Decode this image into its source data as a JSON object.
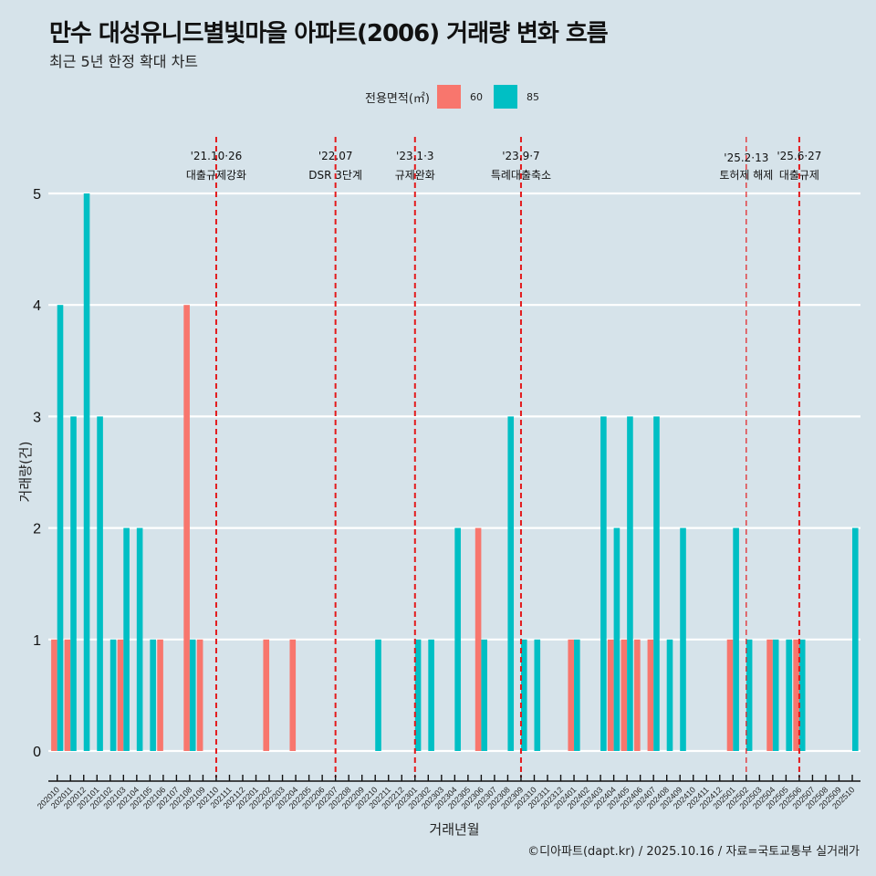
{
  "header": {
    "title": "만수 대성유니드별빛마을 아파트(2006) 거래량 변화 흐름",
    "subtitle": "최근 5년 한정 확대 차트"
  },
  "legend": {
    "title": "전용면적(㎡)",
    "items": [
      {
        "label": "60",
        "color": "#F8766D"
      },
      {
        "label": "85",
        "color": "#00BFC4"
      }
    ]
  },
  "footer": "©디아파트(dapt.kr) / 2025.10.16 / 자료=국토교통부 실거래가",
  "chart_data": {
    "type": "bar",
    "title": "만수 대성유니드별빛마을 아파트(2006) 거래량 변화 흐름",
    "subtitle": "최근 5년 한정 확대 차트",
    "xlabel": "거래년월",
    "ylabel": "거래량(건)",
    "ylim": [
      0,
      5
    ],
    "yticks": [
      0,
      1,
      2,
      3,
      4,
      5
    ],
    "grid": true,
    "legend_position": "top",
    "categories": [
      "202010",
      "202011",
      "202012",
      "202101",
      "202102",
      "202103",
      "202104",
      "202105",
      "202106",
      "202107",
      "202108",
      "202109",
      "202110",
      "202111",
      "202112",
      "202201",
      "202202",
      "202203",
      "202204",
      "202205",
      "202206",
      "202207",
      "202208",
      "202209",
      "202210",
      "202211",
      "202212",
      "202301",
      "202302",
      "202303",
      "202304",
      "202305",
      "202306",
      "202307",
      "202308",
      "202309",
      "202310",
      "202311",
      "202312",
      "202401",
      "202402",
      "202403",
      "202404",
      "202405",
      "202406",
      "202407",
      "202408",
      "202409",
      "202410",
      "202411",
      "202412",
      "202501",
      "202502",
      "202503",
      "202504",
      "202505",
      "202506",
      "202507",
      "202508",
      "202509",
      "202510"
    ],
    "series": [
      {
        "name": "60",
        "color": "#F8766D",
        "values": [
          1,
          1,
          0,
          0,
          0,
          1,
          0,
          0,
          1,
          0,
          4,
          1,
          0,
          0,
          0,
          0,
          1,
          0,
          1,
          0,
          0,
          0,
          0,
          0,
          0,
          0,
          0,
          0,
          0,
          0,
          0,
          0,
          2,
          0,
          0,
          0,
          0,
          0,
          0,
          1,
          0,
          0,
          1,
          1,
          1,
          1,
          0,
          0,
          0,
          0,
          0,
          1,
          0,
          0,
          1,
          0,
          1,
          0,
          0,
          0,
          0
        ]
      },
      {
        "name": "85",
        "color": "#00BFC4",
        "values": [
          4,
          3,
          5,
          3,
          1,
          2,
          2,
          1,
          0,
          0,
          1,
          0,
          0,
          0,
          0,
          0,
          0,
          0,
          0,
          0,
          0,
          0,
          0,
          0,
          1,
          0,
          0,
          1,
          1,
          0,
          2,
          0,
          1,
          0,
          3,
          1,
          1,
          0,
          0,
          1,
          0,
          3,
          2,
          3,
          0,
          3,
          1,
          2,
          0,
          0,
          0,
          2,
          1,
          0,
          1,
          1,
          1,
          0,
          0,
          0,
          2
        ]
      }
    ],
    "annotations": [
      {
        "month": "202110",
        "date": "'21.10·26",
        "label": "대출규제강화",
        "style": "bold"
      },
      {
        "month": "202207",
        "date": "'22.07",
        "label": "DSR 3단계",
        "style": "bold"
      },
      {
        "month": "202301",
        "date": "'23.1·3",
        "label": "규제완화",
        "style": "bold"
      },
      {
        "month": "202309",
        "date": "'23.9·7",
        "label": "특례대출축소",
        "style": "bold"
      },
      {
        "month": "202502",
        "date": "'25.2·13",
        "label": "토허제 해제",
        "style": "thin"
      },
      {
        "month": "202506",
        "date": "'25.6·27",
        "label": "대출규제",
        "style": "bold"
      }
    ],
    "annotation_line_color": "#E31A1C"
  }
}
